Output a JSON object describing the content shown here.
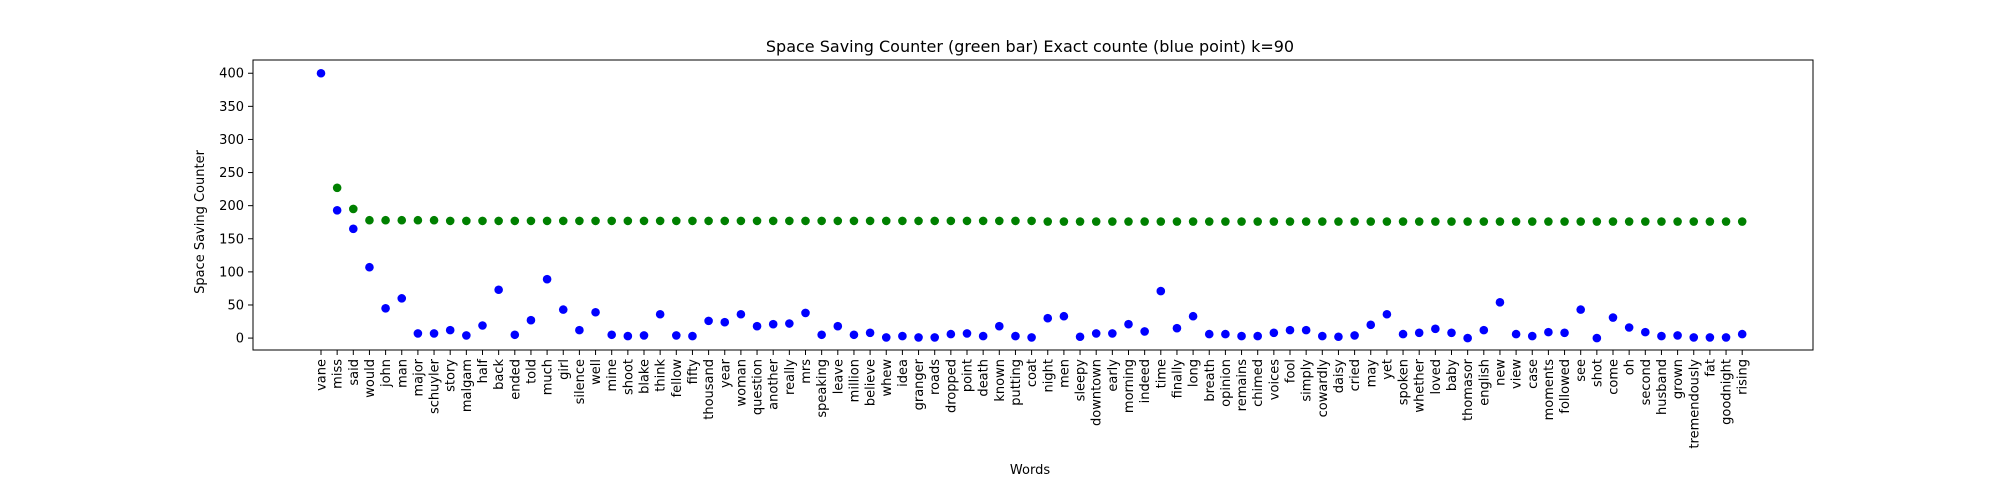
{
  "chart_data": {
    "type": "scatter",
    "title": "Space Saving Counter (green bar)  Exact counte (blue point) k=90",
    "xlabel": "Words",
    "ylabel": "Space Saving Counter",
    "ylim": [
      -18,
      420
    ],
    "yticks": [
      0,
      50,
      100,
      150,
      200,
      250,
      300,
      350,
      400
    ],
    "grid": false,
    "colors": {
      "space_saving": "#008000",
      "exact": "#0000ff"
    },
    "categories": [
      "vane",
      "miss",
      "said",
      "would",
      "john",
      "man",
      "major",
      "schuyler",
      "story",
      "malgam",
      "half",
      "back",
      "ended",
      "told",
      "much",
      "girl",
      "silence",
      "well",
      "mine",
      "shoot",
      "blake",
      "think",
      "fellow",
      "fifty",
      "thousand",
      "year",
      "woman",
      "question",
      "another",
      "really",
      "mrs",
      "speaking",
      "leave",
      "million",
      "believe",
      "whew",
      "idea",
      "granger",
      "roads",
      "dropped",
      "point",
      "death",
      "known",
      "putting",
      "coat",
      "night",
      "men",
      "sleepy",
      "downtown",
      "early",
      "morning",
      "indeed",
      "time",
      "finally",
      "long",
      "breath",
      "opinion",
      "remains",
      "chimed",
      "voices",
      "fool",
      "simply",
      "cowardly",
      "daisy",
      "cried",
      "may",
      "yet",
      "spoken",
      "whether",
      "loved",
      "baby",
      "thomasor",
      "english",
      "new",
      "view",
      "case",
      "moments",
      "followed",
      "see",
      "shot",
      "come",
      "oh",
      "second",
      "husband",
      "grown",
      "tremendously",
      "fat",
      "goodnight",
      "rising"
    ],
    "series": [
      {
        "key": "space_saving",
        "values": [
          null,
          227,
          195,
          178,
          178,
          178,
          178,
          178,
          177,
          177,
          177,
          177,
          177,
          177,
          177,
          177,
          177,
          177,
          177,
          177,
          177,
          177,
          177,
          177,
          177,
          177,
          177,
          177,
          177,
          177,
          177,
          177,
          177,
          177,
          177,
          177,
          177,
          177,
          177,
          177,
          177,
          177,
          177,
          177,
          177,
          176,
          176,
          176,
          176,
          176,
          176,
          176,
          176,
          176,
          176,
          176,
          176,
          176,
          176,
          176,
          176,
          176,
          176,
          176,
          176,
          176,
          176,
          176,
          176,
          176,
          176,
          176,
          176,
          176,
          176,
          176,
          176,
          176,
          176,
          176,
          176,
          176,
          176,
          176,
          176,
          176,
          176,
          176,
          176
        ]
      },
      {
        "key": "exact",
        "values": [
          400,
          193,
          165,
          107,
          45,
          60,
          7,
          7,
          12,
          4,
          19,
          73,
          5,
          27,
          89,
          43,
          12,
          39,
          5,
          3,
          4,
          36,
          4,
          3,
          26,
          24,
          36,
          18,
          21,
          22,
          38,
          5,
          18,
          5,
          8,
          1,
          3,
          1,
          1,
          6,
          7,
          3,
          18,
          3,
          1,
          30,
          33,
          2,
          7,
          7,
          21,
          10,
          71,
          15,
          33,
          6,
          6,
          3,
          3,
          8,
          12,
          12,
          3,
          2,
          4,
          20,
          36,
          6,
          8,
          14,
          8,
          0,
          12,
          54,
          6,
          3,
          9,
          8,
          43,
          0,
          31,
          16,
          9,
          3,
          4,
          1,
          1,
          1,
          6
        ]
      }
    ]
  }
}
